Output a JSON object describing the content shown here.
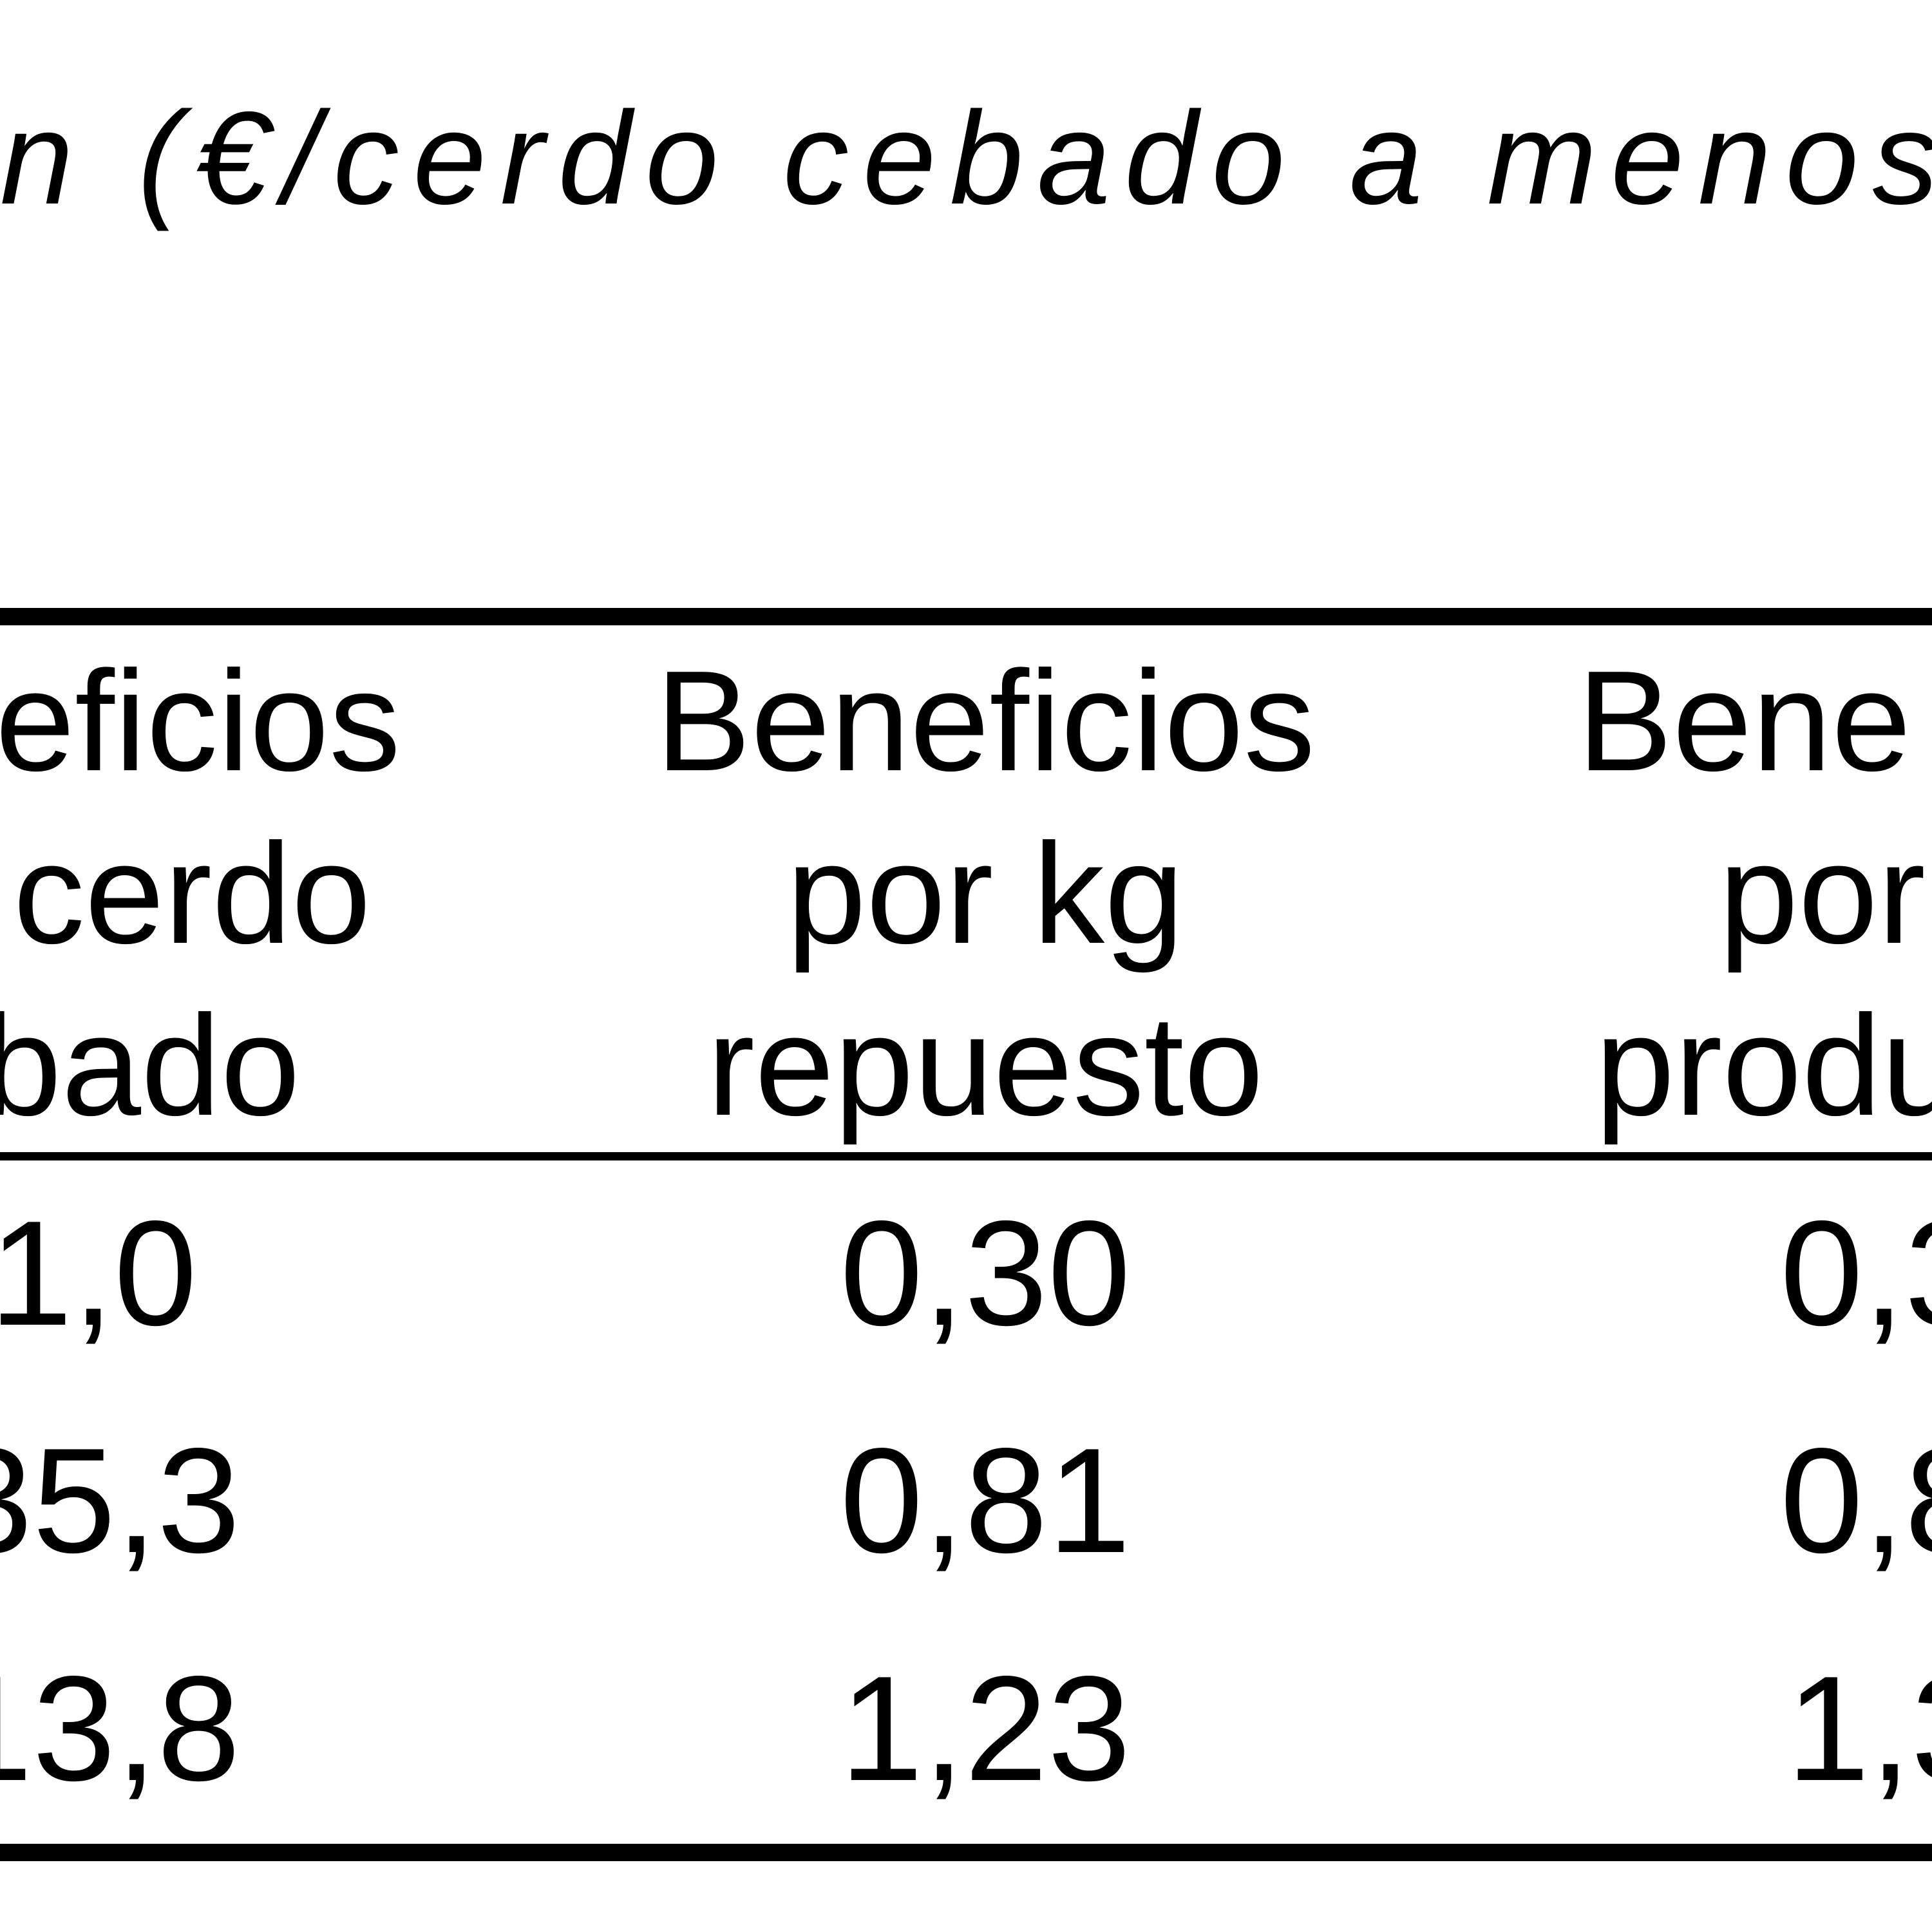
{
  "caption": "n (€/cerdo cebado a menos",
  "table": {
    "header": [
      [
        "eficios",
        "cerdo",
        "bado"
      ],
      [
        "Beneficios",
        "por kg",
        "repuesto"
      ],
      [
        "Bene",
        "por",
        "produ"
      ]
    ],
    "rows": [
      [
        "1,0",
        "0,30",
        "0,3"
      ],
      [
        "35,3",
        "0,81",
        "0,8"
      ],
      [
        "13,8",
        "1,23",
        "1,3"
      ]
    ]
  }
}
